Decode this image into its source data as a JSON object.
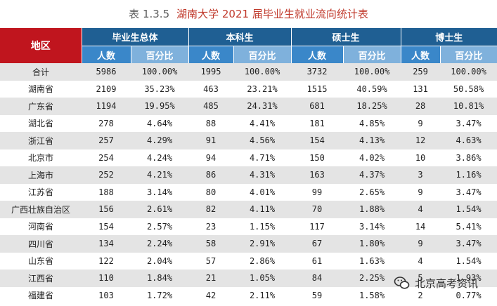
{
  "caption": {
    "number": "表 1.3.5",
    "text": "湖南大学 2021 届毕业生就业流向统计表"
  },
  "headers": {
    "region": "地区",
    "groups": [
      "毕业生总体",
      "本科生",
      "硕士生",
      "博士生"
    ],
    "count": "人数",
    "percent": "百分比"
  },
  "rows": [
    [
      "合计",
      "5986",
      "100.00%",
      "1995",
      "100.00%",
      "3732",
      "100.00%",
      "259",
      "100.00%"
    ],
    [
      "湖南省",
      "2109",
      "35.23%",
      "463",
      "23.21%",
      "1515",
      "40.59%",
      "131",
      "50.58%"
    ],
    [
      "广东省",
      "1194",
      "19.95%",
      "485",
      "24.31%",
      "681",
      "18.25%",
      "28",
      "10.81%"
    ],
    [
      "湖北省",
      "278",
      "4.64%",
      "88",
      "4.41%",
      "181",
      "4.85%",
      "9",
      "3.47%"
    ],
    [
      "浙江省",
      "257",
      "4.29%",
      "91",
      "4.56%",
      "154",
      "4.13%",
      "12",
      "4.63%"
    ],
    [
      "北京市",
      "254",
      "4.24%",
      "94",
      "4.71%",
      "150",
      "4.02%",
      "10",
      "3.86%"
    ],
    [
      "上海市",
      "252",
      "4.21%",
      "86",
      "4.31%",
      "163",
      "4.37%",
      "3",
      "1.16%"
    ],
    [
      "江苏省",
      "188",
      "3.14%",
      "80",
      "4.01%",
      "99",
      "2.65%",
      "9",
      "3.47%"
    ],
    [
      "广西壮族自治区",
      "156",
      "2.61%",
      "82",
      "4.11%",
      "70",
      "1.88%",
      "4",
      "1.54%"
    ],
    [
      "河南省",
      "154",
      "2.57%",
      "23",
      "1.15%",
      "117",
      "3.14%",
      "14",
      "5.41%"
    ],
    [
      "四川省",
      "134",
      "2.24%",
      "58",
      "2.91%",
      "67",
      "1.80%",
      "9",
      "3.47%"
    ],
    [
      "山东省",
      "122",
      "2.04%",
      "57",
      "2.86%",
      "61",
      "1.63%",
      "4",
      "1.54%"
    ],
    [
      "江西省",
      "110",
      "1.84%",
      "21",
      "1.05%",
      "84",
      "2.25%",
      "5",
      "1.93%"
    ],
    [
      "福建省",
      "103",
      "1.72%",
      "42",
      "2.11%",
      "59",
      "1.58%",
      "2",
      "0.77%"
    ]
  ],
  "watermark": {
    "text": "北京高考资讯",
    "icon": "wechat-icon"
  }
}
